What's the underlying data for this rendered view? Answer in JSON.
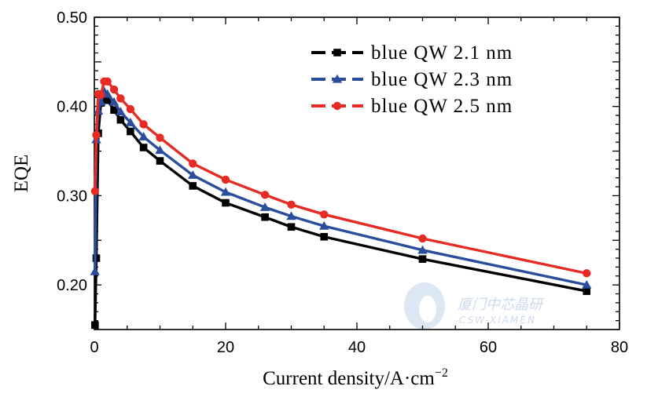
{
  "watermark": {
    "cn": "厦门中芯晶研",
    "en": "CSW-XIAMEN"
  },
  "chart_data": {
    "type": "line",
    "xlabel": "Current density/A·cm",
    "xlabel_sup": "−2",
    "ylabel": "EQE",
    "xlim": [
      0,
      80
    ],
    "ylim": [
      0.15,
      0.5
    ],
    "x_ticks": [
      0,
      20,
      40,
      60,
      80
    ],
    "x_tick_labels": [
      "0",
      "20",
      "40",
      "60",
      "80"
    ],
    "y_ticks": [
      0.2,
      0.3,
      0.4,
      0.5
    ],
    "y_tick_labels": [
      "0.20",
      "0.30",
      "0.40",
      "0.50"
    ],
    "grid": false,
    "legend_position": "top-right",
    "series": [
      {
        "name": "blue QW 2.1 nm",
        "color": "#000000",
        "marker": "square",
        "x": [
          0.1,
          0.3,
          0.6,
          1.0,
          1.5,
          2.0,
          3.0,
          4.0,
          5.5,
          7.5,
          10,
          15,
          20,
          26,
          30,
          35,
          50,
          75
        ],
        "y": [
          0.155,
          0.23,
          0.37,
          0.404,
          0.41,
          0.407,
          0.396,
          0.385,
          0.372,
          0.354,
          0.339,
          0.311,
          0.292,
          0.276,
          0.265,
          0.254,
          0.229,
          0.193
        ]
      },
      {
        "name": "blue QW 2.3 nm",
        "color": "#2a4e9c",
        "marker": "triangle",
        "x": [
          0.1,
          0.3,
          0.6,
          1.0,
          1.5,
          2.0,
          3.0,
          4.0,
          5.5,
          7.5,
          10,
          15,
          20,
          26,
          30,
          35,
          50,
          75
        ],
        "y": [
          0.215,
          0.363,
          0.395,
          0.405,
          0.417,
          0.414,
          0.405,
          0.394,
          0.382,
          0.366,
          0.351,
          0.323,
          0.304,
          0.287,
          0.277,
          0.266,
          0.239,
          0.2
        ]
      },
      {
        "name": "blue QW 2.5 nm",
        "color": "#e52b24",
        "marker": "circle",
        "x": [
          0.1,
          0.3,
          0.6,
          1.0,
          1.5,
          2.0,
          3.0,
          4.0,
          5.5,
          7.5,
          10,
          15,
          20,
          26,
          30,
          35,
          50,
          75
        ],
        "y": [
          0.305,
          0.368,
          0.414,
          0.413,
          0.428,
          0.428,
          0.419,
          0.409,
          0.397,
          0.38,
          0.365,
          0.336,
          0.318,
          0.301,
          0.29,
          0.279,
          0.252,
          0.213
        ]
      }
    ]
  }
}
